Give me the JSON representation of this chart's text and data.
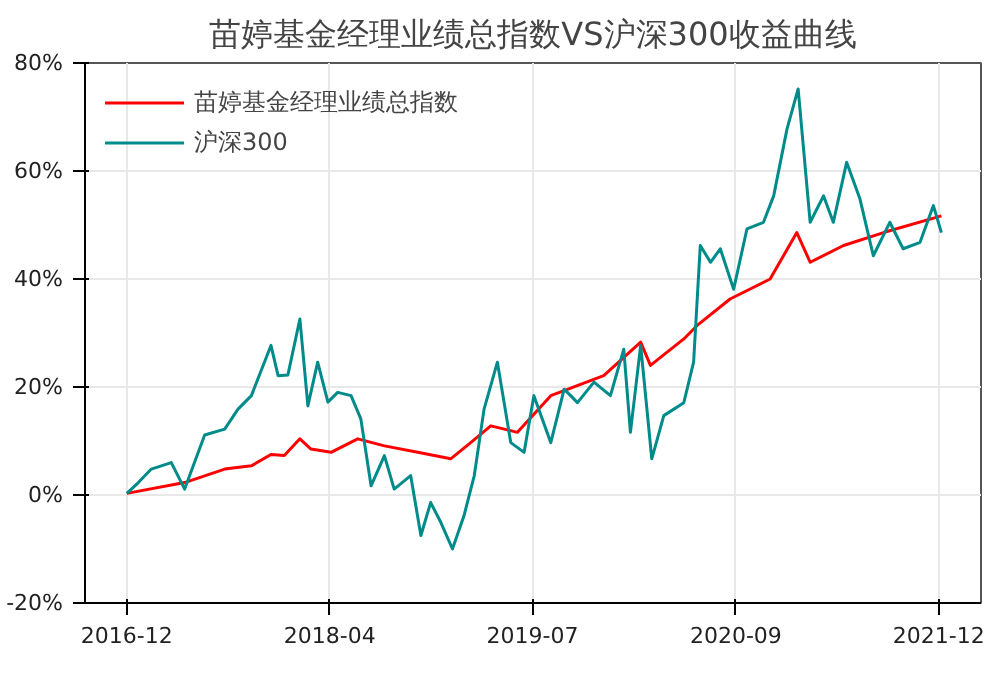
{
  "chart_data": {
    "type": "line",
    "title": "苗婷基金经理业绩总指数VS沪深300收益曲线",
    "xlim": [
      "2016-09-28",
      "2022-04-04"
    ],
    "xticks": [
      {
        "value": "2016-12-31",
        "label": "2016-12"
      },
      {
        "value": "2018-04-01",
        "label": "2018-04"
      },
      {
        "value": "2019-07-01",
        "label": "2019-07"
      },
      {
        "value": "2020-09-30",
        "label": "2020-09"
      },
      {
        "value": "2021-12-30",
        "label": "2021-12"
      }
    ],
    "ylim": [
      -20,
      80
    ],
    "yticks": [
      {
        "value": -20,
        "label": "-20%"
      },
      {
        "value": 0,
        "label": "0%"
      },
      {
        "value": 20,
        "label": "20%"
      },
      {
        "value": 40,
        "label": "40%"
      },
      {
        "value": 60,
        "label": "60%"
      },
      {
        "value": 80,
        "label": "80%"
      }
    ],
    "grid": true,
    "legend": "top left",
    "line_style": "solid",
    "series": [
      {
        "name": "苗婷基金经理业绩总指数",
        "color": "#ff0000",
        "x": [
          "2016-12-31",
          "2017-05-10",
          "2017-08-08",
          "2017-10-07",
          "2017-11-20",
          "2017-12-20",
          "2018-01-24",
          "2018-02-18",
          "2018-04-04",
          "2018-06-03",
          "2018-08-02",
          "2018-10-16",
          "2018-12-29",
          "2019-02-12",
          "2019-03-29",
          "2019-05-28",
          "2019-08-11",
          "2019-12-08",
          "2020-02-29",
          "2020-03-22",
          "2020-06-05",
          "2020-07-05",
          "2020-09-17",
          "2020-12-16",
          "2021-02-14",
          "2021-03-16",
          "2021-05-30",
          "2021-08-28",
          "2022-01-05"
        ],
        "values": [
          0.3,
          2.3,
          4.8,
          5.4,
          7.5,
          7.3,
          10.4,
          8.5,
          7.9,
          10.4,
          9.1,
          7.9,
          6.7,
          9.7,
          12.8,
          11.6,
          18.4,
          22.1,
          28.3,
          24.0,
          28.9,
          31.4,
          36.3,
          40.0,
          48.6,
          43.1,
          46.2,
          48.6,
          51.7
        ]
      },
      {
        "name": "沪深300",
        "color": "#008b8b",
        "x": [
          "2016-12-31",
          "2017-01-26",
          "2017-02-24",
          "2017-04-10",
          "2017-05-10",
          "2017-06-24",
          "2017-08-08",
          "2017-09-07",
          "2017-10-07",
          "2017-11-20",
          "2017-12-06",
          "2017-12-28",
          "2018-01-24",
          "2018-02-11",
          "2018-03-05",
          "2018-03-28",
          "2018-04-19",
          "2018-05-19",
          "2018-06-10",
          "2018-07-03",
          "2018-08-02",
          "2018-08-24",
          "2018-09-30",
          "2018-10-23",
          "2018-11-14",
          "2018-12-07",
          "2019-01-02",
          "2019-01-28",
          "2019-02-20",
          "2019-03-14",
          "2019-04-13",
          "2019-05-13",
          "2019-06-12",
          "2019-07-04",
          "2019-08-11",
          "2019-09-10",
          "2019-10-10",
          "2019-11-16",
          "2019-12-23",
          "2020-01-22",
          "2020-02-06",
          "2020-02-29",
          "2020-03-25",
          "2020-04-21",
          "2020-06-05",
          "2020-06-27",
          "2020-07-12",
          "2020-08-04",
          "2020-08-26",
          "2020-09-25",
          "2020-10-25",
          "2020-12-01",
          "2020-12-24",
          "2021-01-23",
          "2021-02-17",
          "2021-03-16",
          "2021-04-15",
          "2021-05-07",
          "2021-06-06",
          "2021-07-06",
          "2021-08-05",
          "2021-09-11",
          "2021-10-11",
          "2021-11-18",
          "2021-12-18",
          "2022-01-05"
        ],
        "values": [
          0.3,
          2.3,
          4.8,
          6.0,
          1.1,
          11.1,
          12.2,
          15.9,
          18.4,
          27.7,
          22.1,
          22.2,
          32.6,
          16.5,
          24.6,
          17.2,
          19.0,
          18.4,
          14.1,
          1.7,
          7.3,
          1.1,
          3.6,
          -7.5,
          -1.4,
          -5.1,
          -10.0,
          -3.8,
          3.6,
          15.9,
          24.6,
          9.7,
          7.9,
          18.4,
          9.7,
          19.6,
          17.1,
          20.9,
          18.4,
          27.0,
          11.6,
          27.7,
          6.7,
          14.7,
          17.1,
          24.6,
          46.2,
          43.1,
          45.6,
          38.1,
          49.3,
          50.5,
          55.4,
          67.8,
          75.2,
          50.5,
          55.4,
          50.5,
          61.6,
          54.8,
          44.3,
          50.5,
          45.6,
          46.8,
          53.6,
          48.6
        ]
      }
    ]
  }
}
